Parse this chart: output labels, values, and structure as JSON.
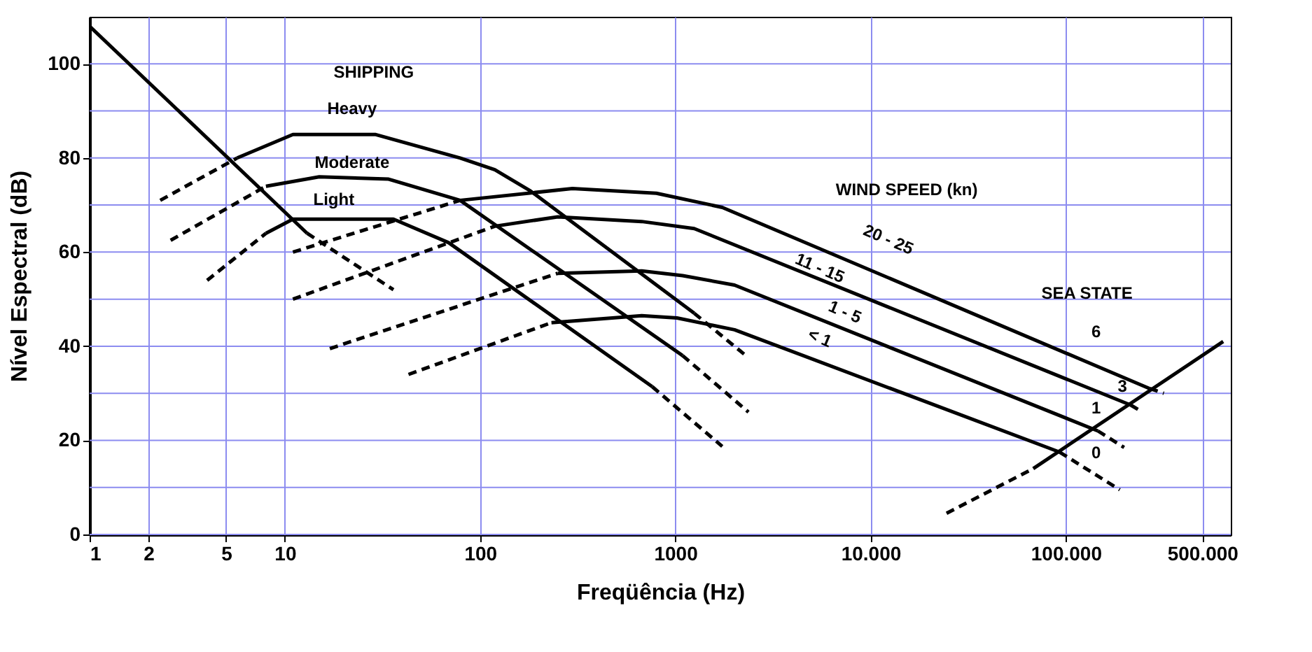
{
  "chart_data": {
    "type": "line",
    "xlabel": "Freqüência (Hz)",
    "ylabel": "Nível Espectral (dB)",
    "log": "x",
    "xlim": [
      1,
      700000
    ],
    "ylim": [
      0,
      110
    ],
    "xticks": [
      1,
      2,
      5,
      10,
      100,
      1000,
      {
        "value": 10000,
        "label": "10.000"
      },
      {
        "value": 100000,
        "label": "100.000"
      },
      {
        "value": 500000,
        "label": "500.000"
      }
    ],
    "yticks": [
      0,
      {
        "value": 10,
        "label": null
      },
      20,
      {
        "value": 30,
        "label": null
      },
      40,
      {
        "value": 50,
        "label": null
      },
      60,
      {
        "value": 70,
        "label": null
      },
      80,
      {
        "value": 90,
        "label": null
      },
      100
    ],
    "grid": true,
    "series": [
      {
        "color": "#000000",
        "line_style": "solid",
        "x": [
          1,
          13
        ],
        "values": [
          108,
          64
        ]
      },
      {
        "color": "#000000",
        "line_style": "dashed",
        "x": [
          13,
          36
        ],
        "values": [
          64,
          52
        ]
      },
      {
        "color": "#000000",
        "line_style": "dashed",
        "x": [
          2.3,
          5.7
        ],
        "values": [
          71,
          80
        ]
      },
      {
        "color": "#000000",
        "line_style": "solid",
        "x": [
          5.7,
          11,
          29,
          79,
          119,
          181,
          1250
        ],
        "values": [
          80,
          85,
          85,
          80,
          77.5,
          73,
          47
        ]
      },
      {
        "color": "#000000",
        "line_style": "dashed",
        "x": [
          1250,
          2300
        ],
        "values": [
          47,
          38
        ]
      },
      {
        "color": "#000000",
        "line_style": "dashed",
        "x": [
          2.6,
          8
        ],
        "values": [
          62.5,
          74
        ]
      },
      {
        "color": "#000000",
        "line_style": "solid",
        "x": [
          8,
          15,
          34,
          79,
          1090
        ],
        "values": [
          74,
          76,
          75.5,
          71,
          38
        ]
      },
      {
        "color": "#000000",
        "line_style": "dashed",
        "x": [
          1090,
          2370
        ],
        "values": [
          38,
          26
        ]
      },
      {
        "color": "#000000",
        "line_style": "dashed",
        "x": [
          4,
          8
        ],
        "values": [
          54,
          64
        ]
      },
      {
        "color": "#000000",
        "line_style": "solid",
        "x": [
          8,
          11,
          24,
          36,
          69,
          762
        ],
        "values": [
          64,
          67,
          67,
          67,
          62,
          31.4
        ]
      },
      {
        "color": "#000000",
        "line_style": "dashed",
        "x": [
          762,
          1740
        ],
        "values": [
          31.4,
          18.7
        ]
      },
      {
        "color": "#000000",
        "line_style": "dashed",
        "x": [
          11,
          79
        ],
        "values": [
          60,
          71
        ]
      },
      {
        "color": "#000000",
        "line_style": "solid",
        "x": [
          79,
          297,
          800,
          1740,
          269000
        ],
        "values": [
          71,
          73.5,
          72.5,
          69.5,
          31
        ]
      },
      {
        "color": "#000000",
        "line_style": "dashed",
        "x": [
          269000,
          318000
        ],
        "values": [
          31,
          30
        ]
      },
      {
        "color": "#000000",
        "line_style": "dashed",
        "x": [
          11,
          119
        ],
        "values": [
          50,
          65.5
        ]
      },
      {
        "color": "#000000",
        "line_style": "solid",
        "x": [
          119,
          250,
          673,
          1250,
          215000
        ],
        "values": [
          65.5,
          67.5,
          66.5,
          65,
          27.5
        ]
      },
      {
        "color": "#000000",
        "line_style": "dashed",
        "x": [
          215000,
          236000
        ],
        "values": [
          27.5,
          26.5
        ]
      },
      {
        "color": "#000000",
        "line_style": "dashed",
        "x": [
          17,
          250
        ],
        "values": [
          39.5,
          55.5
        ]
      },
      {
        "color": "#000000",
        "line_style": "solid",
        "x": [
          250,
          673,
          1090,
          2010,
          146000
        ],
        "values": [
          55.5,
          56,
          55,
          53,
          22
        ]
      },
      {
        "color": "#000000",
        "line_style": "dashed",
        "x": [
          146000,
          199000
        ],
        "values": [
          22,
          18.5
        ]
      },
      {
        "color": "#000000",
        "line_style": "dashed",
        "x": [
          43,
          232
        ],
        "values": [
          34,
          45
        ]
      },
      {
        "color": "#000000",
        "line_style": "solid",
        "x": [
          232,
          673,
          1020,
          2010,
          93000
        ],
        "values": [
          45,
          46.5,
          46,
          43.5,
          17.5
        ]
      },
      {
        "color": "#000000",
        "line_style": "dashed",
        "x": [
          93000,
          189000
        ],
        "values": [
          17.5,
          9.5
        ]
      },
      {
        "color": "#000000",
        "line_style": "dashed",
        "x": [
          24500,
          68100
        ],
        "values": [
          4.5,
          14
        ]
      },
      {
        "color": "#000000",
        "line_style": "solid",
        "x": [
          68100,
          640000
        ],
        "values": [
          14,
          41
        ]
      }
    ],
    "annotations": [
      "SHIPPING",
      "Heavy",
      "Moderate",
      "Light",
      "WIND SPEED (kn)",
      "20 - 25",
      "11 - 15",
      "1 - 5",
      "< 1",
      "SEA STATE",
      "6",
      "3",
      "1",
      "0"
    ]
  }
}
